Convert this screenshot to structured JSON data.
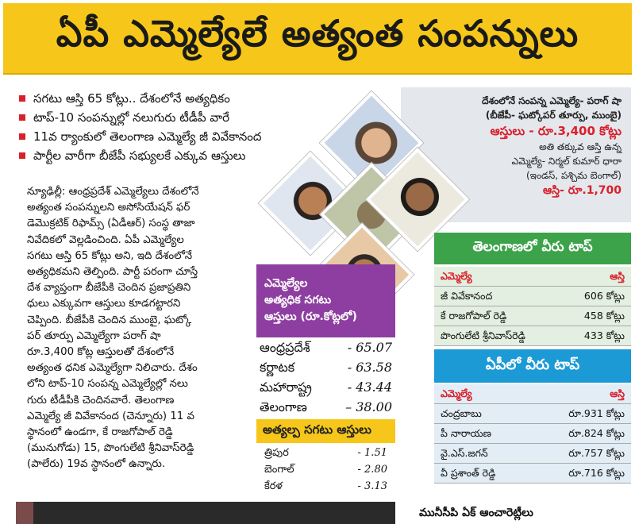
{
  "headline": "ఏపీ ఎమ్మెల్యేలే అత్యంత సంపన్నులు",
  "bullets": [
    "సగటు ఆస్తి 65 కోట్లు.. దేశంలోనే అత్యధికం",
    "టాప్-10 సంపన్నుల్లో నలుగురు టీడీపీ వారే",
    "11వ ర్యాంకులో తెలంగాణ ఎమ్మెల్యే జీ వివేకానంద",
    "పార్టీల వారీగా బీజేపీ సభ్యులకే ఎక్కువ ఆస్తులు"
  ],
  "body_lines": [
    "న్యూఢిల్లీ: ఆంధ్రప్రదేశ్ ఎమ్మెల్యేలు దేశంలోనే",
    "అత్యంత సంపన్నులని అసోసియేషన్ ఫర్",
    "డెమొక్రటిక్ రిఫామ్స్ (ఏడీఆర్) సంస్థ తాజా",
    "నివేదికలో వెల్లడించింది. ఏపీ ఎమ్మెల్యేల",
    "సగటు ఆస్తి 65 కోట్లు అని, ఇది దేశంలోనే",
    "అత్యధికమని తెల్పింది. పార్టీ పరంగా చూస్తే",
    "దేశ వ్యాప్తంగా బీజేపీకి చెందిన ప్రజాప్రతిని",
    "ధులు ఎక్కువగా ఆస్తులు కూడగట్టారని",
    "చెప్పింది. బీజేపీకి చెందిన ముంబై, ఘట్కో",
    "పర్ తూర్పు ఎమ్మెల్యేగా పరాగ్ షా",
    "రూ.3,400 కోట్ల ఆస్తులతో దేశంలోనే",
    "అత్యంత ధనిక ఎమ్మెల్యేగా నిలిచారు. దేశం",
    "లోని టాప్-10 సంపన్న ఎమ్మెల్యేల్లో నలు",
    "గురు టీడీపీకి చెందినవారే. తెలంగాణ",
    "ఎమ్మెల్యే జీ వివేకానంద (చెన్నూరు) 11 వ",
    "స్థానంలో ఉండగా, కే రాజగోపాల్ రెడ్డి",
    "(మునుగోడు) 15, పొంగులేటి శ్రీనివాస్‌రెడ్డి",
    "(పాలేరు) 19వ స్థానంలో ఉన్నారు."
  ],
  "richest": {
    "line1": "దేశంలోనే సంపన్న ఎమ్మెల్యే- పరాగ్ షా",
    "line2": "(బీజేపీ- ఘట్కోపర్ తూర్పు, ముంబై)",
    "assets": "ఆస్తులు - రూ.3,400 కోట్లు",
    "least1": "అతి తక్కువ ఆస్తి ఉన్న",
    "least2": "ఎమ్మెల్యే- నిర్మల్ కుమార్ ధారా",
    "least3": "(ఇండస్, పశ్చిమ బెంగాల్)",
    "least_assets": "ఆస్తి- రూ.1,700"
  },
  "avg_box": {
    "title_lines": [
      "ఎమ్మెల్యేల",
      "అత్యధిక సగటు",
      "ఆస్తులు (రూ.కోట్లలో)"
    ],
    "rows": [
      {
        "state": "ఆంధ్రప్రదేశ్",
        "value": "- 65.07"
      },
      {
        "state": "కర్ణాటక",
        "value": "- 63.58"
      },
      {
        "state": "మహారాష్ట్ర",
        "value": "- 43.44"
      },
      {
        "state": "తెలంగాణ",
        "value": "– 38.00"
      }
    ]
  },
  "least_box": {
    "title": "అత్యల్ప సగటు ఆస్తులు",
    "rows": [
      {
        "state": "త్రిపుర",
        "value": "- 1.51"
      },
      {
        "state": "బెంగాల్",
        "value": "- 2.80"
      },
      {
        "state": "కేరళ",
        "value": "- 3.13"
      }
    ]
  },
  "telangana": {
    "title": "తెలంగాణలో వీరు టాప్",
    "col_mla": "ఎమ్మెల్యే",
    "col_assets": "ఆస్తి",
    "rows": [
      {
        "name": "జీ వివేకానంద",
        "assets": "606 కోట్లు"
      },
      {
        "name": "కే రాజగోపాల్ రెడ్డి",
        "assets": "458 కోట్లు"
      },
      {
        "name": "పొంగులేటి శ్రీనివాస్‌రెడ్డి",
        "assets": "433 కోట్లు"
      }
    ]
  },
  "ap": {
    "title": "ఏపీలో వీరు టాప్",
    "col_mla": "ఎమ్మెల్యే",
    "col_assets": "ఆస్తి",
    "rows": [
      {
        "name": "చంద్రబాబు",
        "assets": "రూ.931 కోట్లు"
      },
      {
        "name": "పీ నారాయణ",
        "assets": "రూ.824 కోట్లు"
      },
      {
        "name": "వై.ఎస్.జగన్",
        "assets": "రూ.757 కోట్లు"
      },
      {
        "name": "వీ ప్రశాంత్ రెడ్డి",
        "assets": "రూ.716 కోట్లు"
      }
    ]
  },
  "bottom_text": "మునీసీపి ఏక్ ఆంచారెట్లీలు",
  "colors": {
    "banner": "#f6c71a",
    "bullet_red": "#d8202b",
    "avg_purple": "#8d3ea0",
    "telangana_green": "#3ca34a",
    "ap_blue": "#1b9ad6"
  }
}
